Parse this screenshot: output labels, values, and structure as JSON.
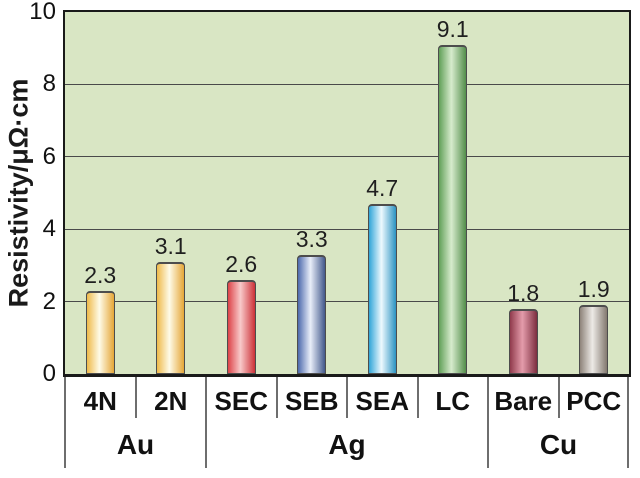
{
  "chart_data": {
    "type": "bar",
    "title": "",
    "ylabel": "Resistivity/μΩ·cm",
    "xlabel": "",
    "ylim": [
      0,
      10
    ],
    "yticks": [
      0,
      2,
      4,
      6,
      8,
      10
    ],
    "grid": "horizontal",
    "legend": "none",
    "plot_bg": "#d9e6c4",
    "grid_color": "#4a4a4a",
    "bar_stroke": "#4d4d4d",
    "categories": [
      "4N",
      "2N",
      "SEC",
      "SEB",
      "SEA",
      "LC",
      "Bare",
      "PCC"
    ],
    "values": [
      2.3,
      3.1,
      2.6,
      3.3,
      4.7,
      9.1,
      1.8,
      1.9
    ],
    "groups": [
      {
        "label": "Au",
        "bars": [
          {
            "label": "4N",
            "value": 2.3,
            "value_label": "2.3",
            "edge": "#efb949",
            "edge2": "#e5a637",
            "mid": "#fefbe8"
          },
          {
            "label": "2N",
            "value": 3.1,
            "value_label": "3.1",
            "edge": "#efb949",
            "edge2": "#e5a637",
            "mid": "#fefbe8"
          }
        ]
      },
      {
        "label": "Ag",
        "bars": [
          {
            "label": "SEC",
            "value": 2.6,
            "value_label": "2.6",
            "edge": "#dd4348",
            "edge2": "#cd3138",
            "mid": "#f8caca"
          },
          {
            "label": "SEB",
            "value": 3.3,
            "value_label": "3.3",
            "edge": "#4c69ac",
            "edge2": "#43598c",
            "mid": "#e9eef9"
          },
          {
            "label": "SEA",
            "value": 4.7,
            "value_label": "4.7",
            "edge": "#30a5d8",
            "edge2": "#2b93c2",
            "mid": "#edf9fe"
          },
          {
            "label": "LC",
            "value": 9.1,
            "value_label": "9.1",
            "edge": "#61a058",
            "edge2": "#538e4b",
            "mid": "#d7ebcd"
          }
        ]
      },
      {
        "label": "Cu",
        "bars": [
          {
            "label": "Bare",
            "value": 1.8,
            "value_label": "1.8",
            "edge": "#903a4c",
            "edge2": "#7c2e3f",
            "mid": "#e49cab"
          },
          {
            "label": "PCC",
            "value": 1.9,
            "value_label": "1.9",
            "edge": "#8e847a",
            "edge2": "#837970",
            "mid": "#edeae6"
          }
        ]
      }
    ]
  }
}
